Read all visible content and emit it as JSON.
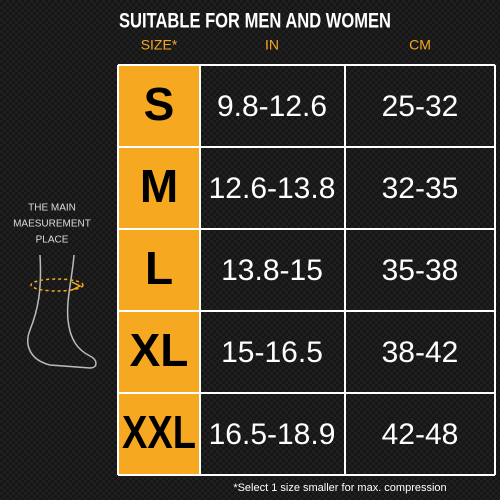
{
  "title": "SUITABLE FOR MEN AND WOMEN",
  "table": {
    "headers": [
      "SIZE*",
      "IN",
      "CM"
    ],
    "rows": [
      [
        "S",
        "9.8-12.6",
        "25-32"
      ],
      [
        "M",
        "12.6-13.8",
        "32-35"
      ],
      [
        "L",
        "13.8-15",
        "35-38"
      ],
      [
        "XL",
        "15-16.5",
        "38-42"
      ],
      [
        "XXL",
        "16.5-18.9",
        "42-48"
      ]
    ]
  },
  "measurement_note": [
    "THE MAIN",
    "MAESUREMENT",
    "PLACE"
  ],
  "footnote": "*Select 1 size smaller for max. compression"
}
